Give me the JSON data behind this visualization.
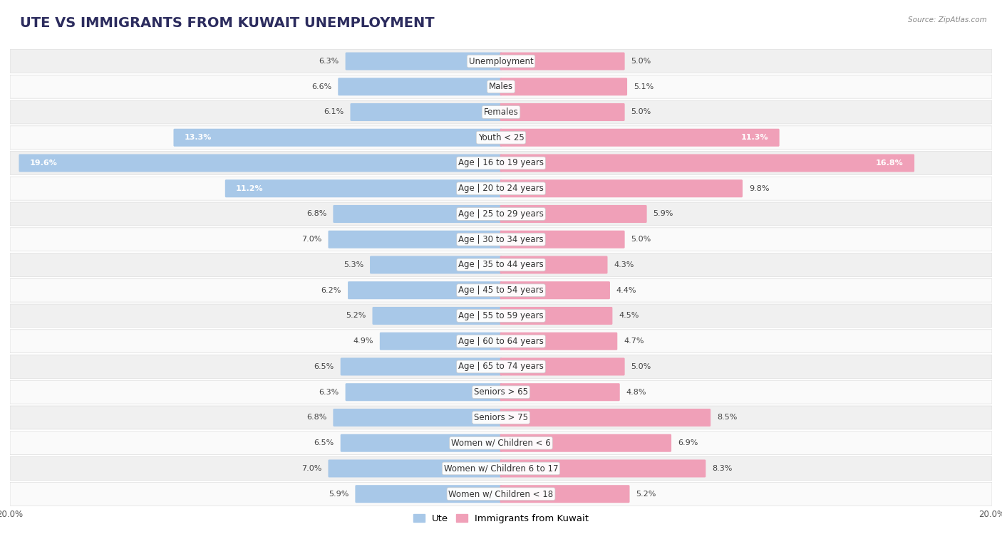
{
  "title": "UTE VS IMMIGRANTS FROM KUWAIT UNEMPLOYMENT",
  "source": "Source: ZipAtlas.com",
  "categories": [
    "Unemployment",
    "Males",
    "Females",
    "Youth < 25",
    "Age | 16 to 19 years",
    "Age | 20 to 24 years",
    "Age | 25 to 29 years",
    "Age | 30 to 34 years",
    "Age | 35 to 44 years",
    "Age | 45 to 54 years",
    "Age | 55 to 59 years",
    "Age | 60 to 64 years",
    "Age | 65 to 74 years",
    "Seniors > 65",
    "Seniors > 75",
    "Women w/ Children < 6",
    "Women w/ Children 6 to 17",
    "Women w/ Children < 18"
  ],
  "ute_values": [
    6.3,
    6.6,
    6.1,
    13.3,
    19.6,
    11.2,
    6.8,
    7.0,
    5.3,
    6.2,
    5.2,
    4.9,
    6.5,
    6.3,
    6.8,
    6.5,
    7.0,
    5.9
  ],
  "kuwait_values": [
    5.0,
    5.1,
    5.0,
    11.3,
    16.8,
    9.8,
    5.9,
    5.0,
    4.3,
    4.4,
    4.5,
    4.7,
    5.0,
    4.8,
    8.5,
    6.9,
    8.3,
    5.2
  ],
  "ute_color": "#a8c8e8",
  "kuwait_color": "#f0a0b8",
  "ute_color_dark": "#6aaad4",
  "kuwait_color_dark": "#e8607a",
  "row_bg_odd": "#f0f0f0",
  "row_bg_even": "#fafafa",
  "axis_max": 20.0,
  "bar_height": 0.62,
  "title_fontsize": 14,
  "label_fontsize": 8.5,
  "value_fontsize": 8.0,
  "tick_fontsize": 8.5,
  "legend_fontsize": 9.5
}
